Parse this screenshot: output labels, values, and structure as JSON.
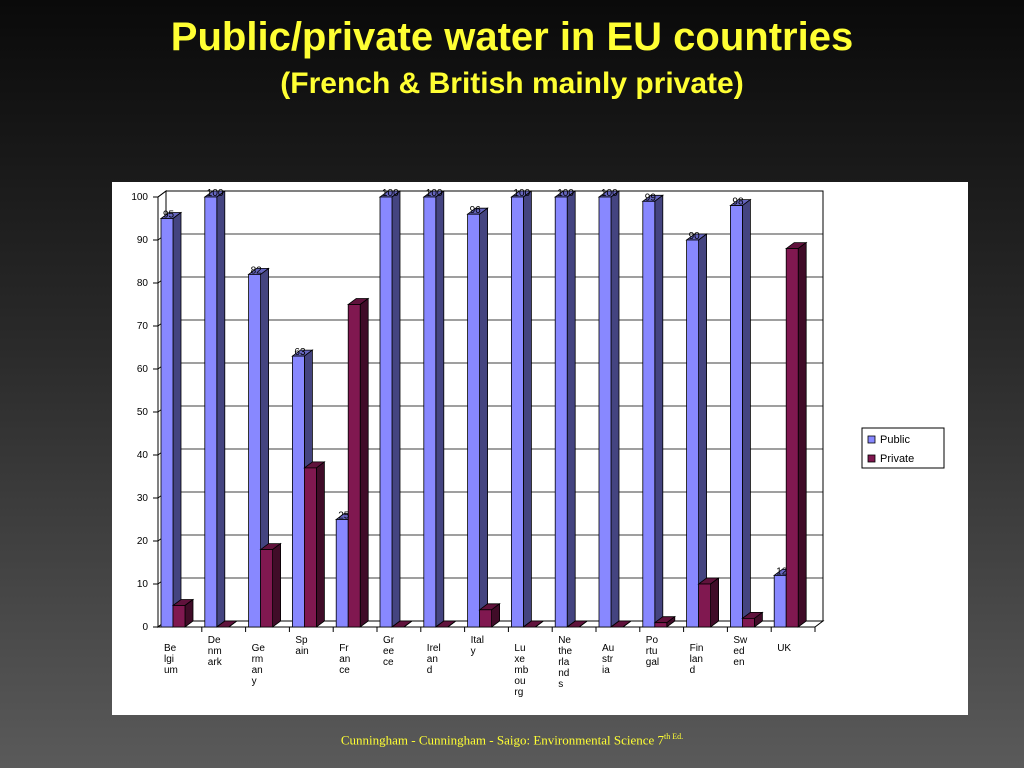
{
  "slide": {
    "title": "Public/private water in EU countries",
    "subtitle": "(French & British mainly private)",
    "footer_text": "Cunningham - Cunningham - Saigo: Environmental Science 7",
    "footer_sup": "th Ed."
  },
  "chart_data": {
    "type": "bar",
    "ylim": [
      0,
      100
    ],
    "yticks": [
      0,
      10,
      20,
      30,
      40,
      50,
      60,
      70,
      80,
      90,
      100
    ],
    "category_labels": [
      [
        "Be",
        "lgi",
        "um"
      ],
      [
        "De",
        "nm",
        "ark"
      ],
      [
        "Ge",
        "rm",
        "an",
        "y"
      ],
      [
        "Sp",
        "ain"
      ],
      [
        "Fr",
        "an",
        "ce"
      ],
      [
        "Gr",
        "ee",
        "ce"
      ],
      [
        "Irel",
        "an",
        "d"
      ],
      [
        "Ital",
        "y"
      ],
      [
        "Lu",
        "xe",
        "mb",
        "ou",
        "rg"
      ],
      [
        "Ne",
        "the",
        "rla",
        "nd",
        "s"
      ],
      [
        "Au",
        "str",
        "ia"
      ],
      [
        "Po",
        "rtu",
        "gal"
      ],
      [
        "Fin",
        "lan",
        "d"
      ],
      [
        "Sw",
        "ed",
        "en"
      ],
      [
        "UK"
      ]
    ],
    "series": [
      {
        "name": "Public",
        "color": "#8888ff",
        "values": [
          95,
          100,
          82,
          63,
          25,
          100,
          100,
          96,
          100,
          100,
          100,
          99,
          90,
          98,
          12
        ]
      },
      {
        "name": "Private",
        "color": "#801850",
        "values": [
          5,
          0,
          18,
          37,
          75,
          0,
          0,
          4,
          0,
          0,
          0,
          1,
          10,
          2,
          88
        ]
      }
    ],
    "data_labels": [
      "95",
      "100",
      "82",
      "63",
      "25",
      "100",
      "100",
      "96",
      "100",
      "100",
      "100",
      "99",
      "90",
      "98",
      "12"
    ],
    "legend_position": "right",
    "grid": true
  }
}
